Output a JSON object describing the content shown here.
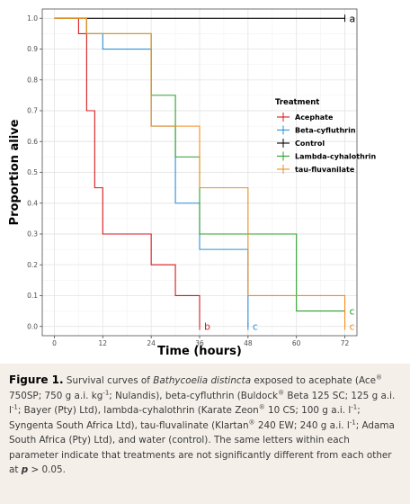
{
  "chart_data": {
    "type": "line",
    "subtype": "step",
    "xlabel": "Time (hours)",
    "ylabel": "Proportion alive",
    "xlim": [
      -3,
      75
    ],
    "ylim": [
      -0.03,
      1.03
    ],
    "x_ticks": [
      0,
      12,
      24,
      36,
      48,
      60,
      72
    ],
    "x_tick_labels": [
      "0",
      "12",
      "24",
      "36",
      "48",
      "60",
      "72"
    ],
    "y_ticks": [
      0,
      0.1,
      0.2,
      0.3,
      0.4,
      0.5,
      0.6,
      0.7,
      0.8,
      0.9,
      1.0
    ],
    "y_tick_labels": [
      "0.0",
      "0.1",
      "0.2",
      "0.3",
      "0.4",
      "0.5",
      "0.6",
      "0.7",
      "0.8",
      "0.9",
      "1.0"
    ],
    "grid": true,
    "legend": {
      "title": "Treatment",
      "position": "right"
    },
    "series": [
      {
        "name": "Acephate",
        "color": "#d7191c",
        "x": [
          0,
          6,
          8,
          10,
          12,
          24,
          30,
          36
        ],
        "y": [
          1.0,
          0.95,
          0.7,
          0.45,
          0.3,
          0.2,
          0.1,
          0.05
        ],
        "end_x": 36,
        "end_y": 0.0,
        "letter": "b"
      },
      {
        "name": "Beta-cyfluthrin",
        "color": "#2c90d9",
        "x": [
          0,
          8,
          12,
          24,
          30,
          36,
          48
        ],
        "y": [
          1.0,
          0.95,
          0.9,
          0.65,
          0.4,
          0.25,
          0.1
        ],
        "end_x": 48,
        "end_y": 0.0,
        "letter": "c"
      },
      {
        "name": "Control",
        "color": "#000000",
        "x": [
          0
        ],
        "y": [
          1.0
        ],
        "end_x": 72,
        "end_y": 1.0,
        "letter": "a"
      },
      {
        "name": "Lambda-cyhalothrin",
        "color": "#2ca02c",
        "x": [
          0,
          8,
          24,
          30,
          36,
          60
        ],
        "y": [
          1.0,
          0.95,
          0.75,
          0.55,
          0.3,
          0.05
        ],
        "end_x": 72,
        "end_y": 0.05,
        "letter": "c"
      },
      {
        "name": "tau-fluvanilate",
        "color": "#f28e1c",
        "x": [
          0,
          8,
          24,
          36,
          48
        ],
        "y": [
          1.0,
          0.95,
          0.65,
          0.45,
          0.1
        ],
        "end_x": 72,
        "end_y": 0.0,
        "letter": "c"
      }
    ]
  },
  "caption": {
    "label": "Figure 1.",
    "t1": "Survival curves of ",
    "species": "Bathycoelia distincta",
    "t2": " exposed to acephate (Ace",
    "reg1": "®",
    "t3": " 750SP; 750 g a.i. kg",
    "sup1": "-1",
    "t4": "; Nulandis), beta-cyfluthrin (Buldock",
    "reg2": "®",
    "t5": " Beta 125 SC; 125 g a.i. l",
    "sup2": "-1",
    "t6": "; Bayer (Pty) Ltd), lambda-cyhalothrin (Karate Zeon",
    "reg3": "®",
    "t7": " 10 CS; 100 g a.i. l",
    "sup3": "-1",
    "t8": "; Syngenta South Africa Ltd), tau-fluvalinate (Klartan",
    "reg4": "®",
    "t9": " 240 EW; 240 g a.i. l",
    "sup4": "-1",
    "t10": "; Adama South Africa (Pty) Ltd), and water (control). The same letters within each parameter indicate that treatments are not significantly different from each other at ",
    "p": "p",
    "t11": " > 0.05."
  }
}
